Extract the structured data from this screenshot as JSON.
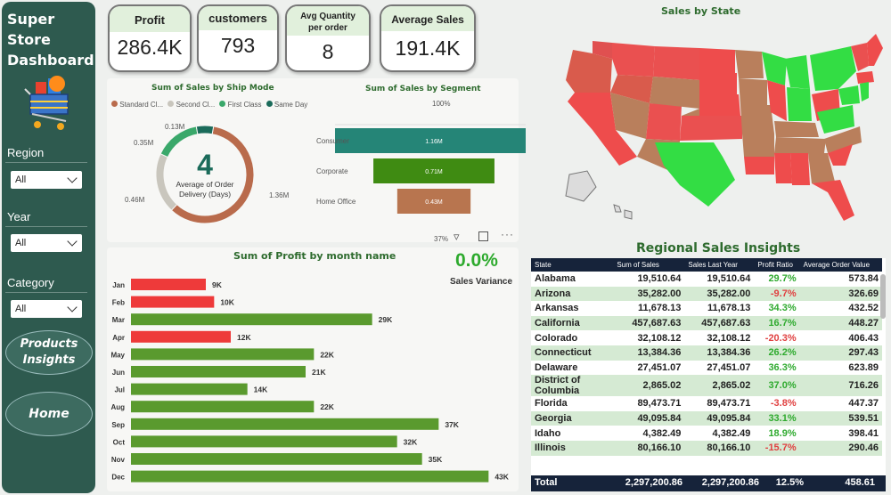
{
  "sidebar": {
    "title_line1": "Super Store",
    "title_line2": "Dashboard",
    "region_label": "Region",
    "region_value": "All",
    "year_label": "Year",
    "year_value": "All",
    "category_label": "Category",
    "category_value": "All",
    "products_btn_line1": "Products",
    "products_btn_line2": "Insights",
    "home_btn": "Home"
  },
  "kpis": {
    "profit_label": "Profit",
    "profit_value": "286.4K",
    "customers_label": "customers",
    "customers_value": "793",
    "avgqty_label_line1": "Avg Quantity",
    "avgqty_label_line2": "per order",
    "avgqty_value": "8",
    "avgsales_label": "Average Sales",
    "avgsales_value": "191.4K"
  },
  "ship_mode": {
    "title": "Sum of Sales by Ship Mode",
    "legend": [
      "Standard Cl...",
      "Second Cl...",
      "First Class",
      "Same Day"
    ],
    "center_value": "4",
    "center_label_line1": "Average of Order",
    "center_label_line2": "Delivery (Days)",
    "labels": [
      "0.13M",
      "0.35M",
      "0.46M",
      "1.36M"
    ]
  },
  "segment": {
    "title": "Sum of Sales by Segment",
    "top_pct": "100%",
    "bottom_pct": "37%"
  },
  "profit_month": {
    "title": "Sum of Profit by month name",
    "variance_value": "0.0%",
    "variance_label": "Sales Variance"
  },
  "map": {
    "title": "Sales by State"
  },
  "regional": {
    "title": "Regional Sales Insights",
    "headers": [
      "State",
      "Sum of Sales",
      "Sales Last Year",
      "Profit Ratio",
      "Average Order Value"
    ],
    "rows": [
      {
        "state": "Alabama",
        "sales": "19,510.64",
        "last": "19,510.64",
        "ratio": "29.7%",
        "aov": "573.84"
      },
      {
        "state": "Arizona",
        "sales": "35,282.00",
        "last": "35,282.00",
        "ratio": "-9.7%",
        "aov": "326.69"
      },
      {
        "state": "Arkansas",
        "sales": "11,678.13",
        "last": "11,678.13",
        "ratio": "34.3%",
        "aov": "432.52"
      },
      {
        "state": "California",
        "sales": "457,687.63",
        "last": "457,687.63",
        "ratio": "16.7%",
        "aov": "448.27"
      },
      {
        "state": "Colorado",
        "sales": "32,108.12",
        "last": "32,108.12",
        "ratio": "-20.3%",
        "aov": "406.43"
      },
      {
        "state": "Connecticut",
        "sales": "13,384.36",
        "last": "13,384.36",
        "ratio": "26.2%",
        "aov": "297.43"
      },
      {
        "state": "Delaware",
        "sales": "27,451.07",
        "last": "27,451.07",
        "ratio": "36.3%",
        "aov": "623.89"
      },
      {
        "state": "District of",
        "state2": "Columbia",
        "sales": "2,865.02",
        "last": "2,865.02",
        "ratio": "37.0%",
        "aov": "716.26"
      },
      {
        "state": "Florida",
        "sales": "89,473.71",
        "last": "89,473.71",
        "ratio": "-3.8%",
        "aov": "447.37"
      },
      {
        "state": "Georgia",
        "sales": "49,095.84",
        "last": "49,095.84",
        "ratio": "33.1%",
        "aov": "539.51"
      },
      {
        "state": "Idaho",
        "sales": "4,382.49",
        "last": "4,382.49",
        "ratio": "18.9%",
        "aov": "398.41"
      },
      {
        "state": "Illinois",
        "sales": "80,166.10",
        "last": "80,166.10",
        "ratio": "-15.7%",
        "aov": "290.46"
      }
    ],
    "total": {
      "state": "Total",
      "sales": "2,297,200.86",
      "last": "2,297,200.86",
      "ratio": "12.5%",
      "aov": "458.61"
    }
  },
  "colors": {
    "sidebar": "#2e5a4f",
    "bar_green": "#5a9a2e",
    "bar_red": "#ee3a3a",
    "pie_brown": "#b96b4c",
    "pie_grey": "#c9c6bd",
    "pie_green": "#3aa86a",
    "pie_teal": "#1b6b5a"
  },
  "chart_data": [
    {
      "type": "pie",
      "title": "Sum of Sales by Ship Mode",
      "categories": [
        "Standard Class",
        "Second Class",
        "First Class",
        "Same Day"
      ],
      "values": [
        1.36,
        0.46,
        0.35,
        0.13
      ],
      "unit": "M"
    },
    {
      "type": "bar",
      "title": "Sum of Sales by Segment",
      "categories": [
        "Consumer",
        "Corporate",
        "Home Office"
      ],
      "values": [
        1.16,
        0.71,
        0.43
      ],
      "data_labels": [
        "1.16M",
        "0.71M",
        "0.43M"
      ]
    },
    {
      "type": "bar",
      "title": "Sum of Profit by month name",
      "categories": [
        "Jan",
        "Feb",
        "Mar",
        "Apr",
        "May",
        "Jun",
        "Jul",
        "Aug",
        "Sep",
        "Oct",
        "Nov",
        "Dec"
      ],
      "values": [
        9,
        10,
        29,
        12,
        22,
        21,
        14,
        22,
        37,
        32,
        35,
        43
      ],
      "data_labels": [
        "9K",
        "10K",
        "29K",
        "12K",
        "22K",
        "21K",
        "14K",
        "22K",
        "37K",
        "32K",
        "35K",
        "43K"
      ],
      "highlight": [
        "red",
        "red",
        "green",
        "red",
        "green",
        "green",
        "green",
        "green",
        "green",
        "green",
        "green",
        "green"
      ]
    }
  ]
}
